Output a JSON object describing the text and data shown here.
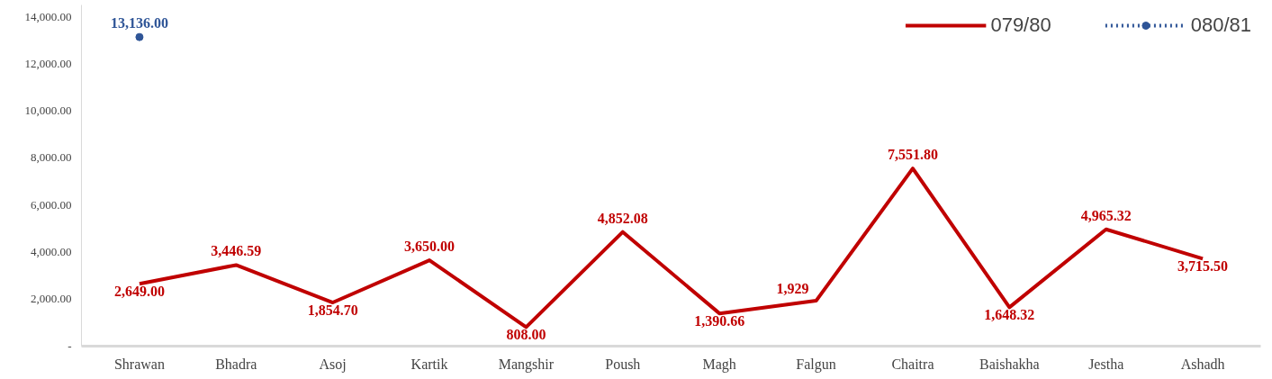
{
  "chart_data": {
    "type": "line",
    "categories": [
      "Shrawan",
      "Bhadra",
      "Asoj",
      "Kartik",
      "Mangshir",
      "Poush",
      "Magh",
      "Falgun",
      "Chaitra",
      "Baishakha",
      "Jestha",
      "Ashadh"
    ],
    "series": [
      {
        "name": "079/80",
        "color": "#c00000",
        "line_style": "solid",
        "marker": "none",
        "values": [
          2649.0,
          3446.59,
          1854.7,
          3650.0,
          808.0,
          4852.08,
          1390.66,
          1929,
          7551.8,
          1648.32,
          4965.32,
          3715.5
        ],
        "value_labels": [
          "2,649.00",
          "3,446.59",
          "1,854.70",
          "3,650.00",
          "808.00",
          "4,852.08",
          "1,390.66",
          "1,929",
          "7,551.80",
          "1,648.32",
          "4,965.32",
          "3,715.50"
        ]
      },
      {
        "name": "080/81",
        "color": "#2f5597",
        "line_style": "dotted",
        "marker": "circle",
        "values": [
          13136.0,
          null,
          null,
          null,
          null,
          null,
          null,
          null,
          null,
          null,
          null,
          null
        ],
        "value_labels": [
          "13,136.00",
          null,
          null,
          null,
          null,
          null,
          null,
          null,
          null,
          null,
          null,
          null
        ]
      }
    ],
    "ylim": [
      0,
      14500
    ],
    "yticks": [
      {
        "value": 0,
        "label": "-"
      },
      {
        "value": 2000,
        "label": "2,000.00"
      },
      {
        "value": 4000,
        "label": "4,000.00"
      },
      {
        "value": 6000,
        "label": "6,000.00"
      },
      {
        "value": 8000,
        "label": "8,000.00"
      },
      {
        "value": 10000,
        "label": "10,000.00"
      },
      {
        "value": 12000,
        "label": "12,000.00"
      },
      {
        "value": 14000,
        "label": "14,000.00"
      }
    ],
    "grid": false,
    "legend": "top right"
  }
}
